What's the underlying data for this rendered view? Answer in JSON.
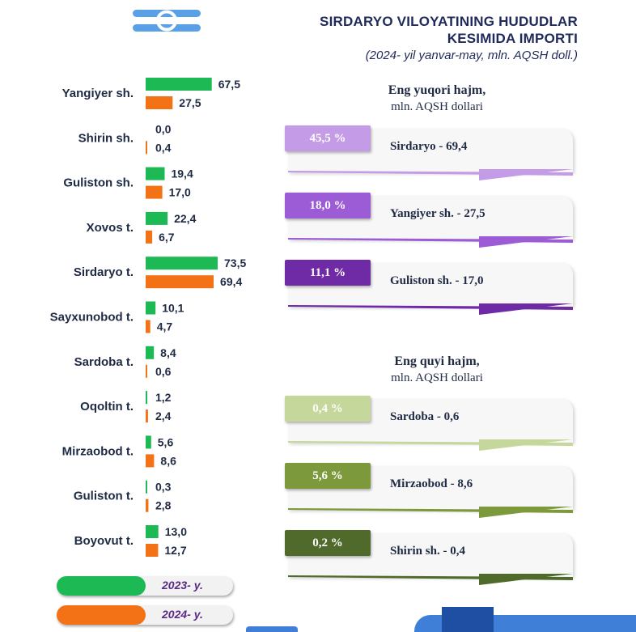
{
  "header": {
    "title_line1": "SIRDARYO VILOYATINING HUDUDLAR",
    "title_line2": "KESIMIDA IMPORTI",
    "subtitle": "(2024- yil yanvar-may, mln. AQSH doll.)"
  },
  "colors": {
    "series_2023": "#1db954",
    "series_2024": "#f47216",
    "title": "#1f2a5a",
    "legend_text": "#5b2a86"
  },
  "chart_data": {
    "type": "bar",
    "orientation": "horizontal",
    "categories": [
      "Yangiyer sh.",
      "Shirin sh.",
      "Guliston sh.",
      "Xovos t.",
      "Sirdaryo t.",
      "Sayxunobod t.",
      "Sardoba t.",
      "Oqoltin t.",
      "Mirzaobod t.",
      "Guliston t.",
      "Boyovut t."
    ],
    "series": [
      {
        "name": "2023- y.",
        "values": [
          67.5,
          0.0,
          19.4,
          22.4,
          73.5,
          10.1,
          8.4,
          1.2,
          5.6,
          0.3,
          13.0
        ],
        "labels": [
          "67,5",
          "0,0",
          "19,4",
          "22,4",
          "73,5",
          "10,1",
          "8,4",
          "1,2",
          "5,6",
          "0,3",
          "13,0"
        ]
      },
      {
        "name": "2024- y.",
        "values": [
          27.5,
          0.4,
          17.0,
          6.7,
          69.4,
          4.7,
          0.6,
          2.4,
          8.6,
          2.8,
          12.7
        ],
        "labels": [
          "27,5",
          "0,4",
          "17,0",
          "6,7",
          "69,4",
          "4,7",
          "0,6",
          "2,4",
          "8,6",
          "2,8",
          "12,7"
        ]
      }
    ],
    "xlim": [
      0,
      73.5
    ],
    "grid": false,
    "legend": "bottom-left"
  },
  "legend": {
    "items": [
      {
        "label": "2023- y.",
        "color": "#1db954"
      },
      {
        "label": "2024- y.",
        "color": "#f47216"
      }
    ]
  },
  "top_panel": {
    "heading": "Eng yuqori hajm,",
    "unit": "mln. AQSH dollari",
    "items": [
      {
        "percent": "45,5 %",
        "text": "Sirdaryo - 69,4",
        "color": "#c39be6"
      },
      {
        "percent": "18,0 %",
        "text": "Yangiyer sh. - 27,5",
        "color": "#9b5cd6"
      },
      {
        "percent": "11,1 %",
        "text": "Guliston sh.  - 17,0",
        "color": "#6f2aa6"
      }
    ]
  },
  "bottom_panel": {
    "heading": "Eng quyi hajm,",
    "unit": "mln. AQSH dollari",
    "items": [
      {
        "percent": "0,4 %",
        "text": "Sardoba -  0,6",
        "color": "#c5d79a"
      },
      {
        "percent": "5,6 %",
        "text": "Mirzaobod - 8,6",
        "color": "#7c9a3c"
      },
      {
        "percent": "0,2 %",
        "text": "Shirin sh. - 0,4",
        "color": "#4f6a2a"
      }
    ]
  }
}
